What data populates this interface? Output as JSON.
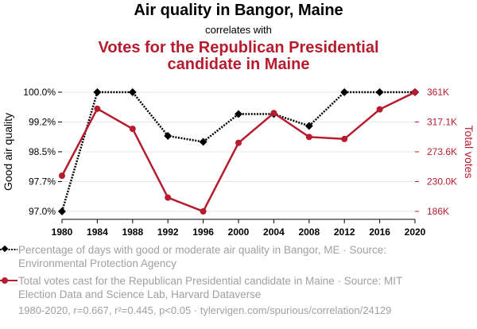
{
  "header": {
    "title": "Air quality in Bangor, Maine",
    "subtitle": "correlates with",
    "title2": "Votes for the Republican Presidential candidate in Maine"
  },
  "legend": {
    "series1": "Percentage of days with good or moderate air quality in Bangor, ME · Source: Environmental Protection Agency",
    "series2": "Total votes cast for the Republican Presidential candidate in Maine · Source: MIT Election Data and Science Lab, Harvard Dataverse"
  },
  "footer": {
    "text": "1980-2020, r=0.667, r²=0.445, p<0.05 · tylervigen.com/spurious/correlation/24129"
  },
  "chart_data": {
    "type": "line",
    "x": [
      1980,
      1984,
      1988,
      1992,
      1996,
      2000,
      2004,
      2008,
      2012,
      2016,
      2020
    ],
    "xticks": [
      "1980",
      "1984",
      "1988",
      "1992",
      "1996",
      "2000",
      "2004",
      "2008",
      "2012",
      "2016",
      "2020"
    ],
    "series": [
      {
        "name": "Percentage of days with good or moderate air quality in Bangor, ME",
        "axis": "left",
        "color": "#000000",
        "style": "dotted",
        "marker": "diamond",
        "values": [
          97.0,
          100.0,
          100.0,
          98.9,
          98.75,
          99.45,
          99.45,
          99.15,
          100.0,
          100.0,
          100.0
        ]
      },
      {
        "name": "Total votes cast for the Republican Presidential candidate in Maine",
        "axis": "right",
        "color": "#b71c2e",
        "style": "solid",
        "marker": "circle",
        "values": [
          238522,
          336500,
          307131,
          206504,
          186378,
          286616,
          330201,
          295273,
          292276,
          335593,
          360737
        ]
      }
    ],
    "ylabel_left": "Good air quality",
    "ylabel_right": "Total votes",
    "yticks_left": [
      {
        "v": 100.0,
        "label": "100.0%"
      },
      {
        "v": 99.25,
        "label": "99.2%"
      },
      {
        "v": 98.5,
        "label": "98.5%"
      },
      {
        "v": 97.75,
        "label": "97.7%"
      },
      {
        "v": 97.0,
        "label": "97.0%"
      }
    ],
    "yticks_right": [
      {
        "v": 360737,
        "label": "361K"
      },
      {
        "v": 317147,
        "label": "317.1K"
      },
      {
        "v": 273557,
        "label": "273.6K"
      },
      {
        "v": 229967,
        "label": "230.0K"
      },
      {
        "v": 186378,
        "label": "186K"
      }
    ],
    "ylim_left": [
      97.0,
      100.0
    ],
    "ylim_right": [
      186378,
      360737
    ],
    "grid": true
  }
}
